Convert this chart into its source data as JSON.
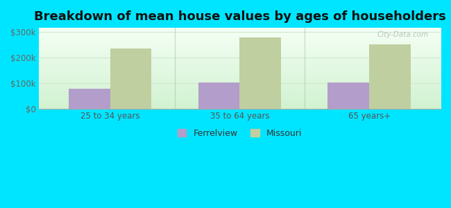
{
  "title": "Breakdown of mean house values by ages of householders",
  "categories": [
    "25 to 34 years",
    "35 to 64 years",
    "65 years+"
  ],
  "ferrelview_values": [
    80000,
    102000,
    102000
  ],
  "missouri_values": [
    235000,
    278000,
    252000
  ],
  "ferrelview_color": "#b39dca",
  "missouri_color": "#bfcfa0",
  "outer_bg_color": "#00e5ff",
  "ylabel_ticks": [
    0,
    100000,
    200000,
    300000
  ],
  "ylabel_labels": [
    "$0",
    "$100k",
    "$200k",
    "$300k"
  ],
  "ylim": [
    0,
    315000
  ],
  "legend_labels": [
    "Ferrelview",
    "Missouri"
  ],
  "bar_width": 0.32,
  "title_fontsize": 13,
  "tick_fontsize": 8.5,
  "legend_fontsize": 9,
  "watermark": "City-Data.com",
  "grid_color": "#d0e8d0",
  "separator_color": "#aaccaa"
}
